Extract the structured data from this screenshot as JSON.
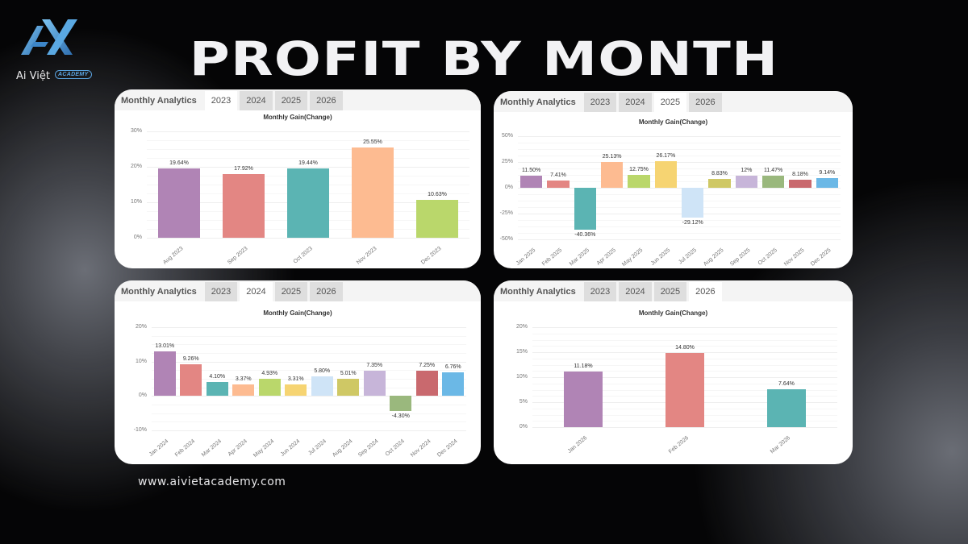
{
  "header": {
    "title": "PROFIT BY MONTH",
    "logo_text": "Ai Việt",
    "logo_badge": "ACADEMY",
    "logo_icon": "ax-logo-icon"
  },
  "footer": {
    "url": "www.aivietacademy.com"
  },
  "tabs_common": {
    "title": "Monthly Analytics",
    "years": [
      "2023",
      "2024",
      "2025",
      "2026"
    ]
  },
  "colors": {
    "purple": "#b084b5",
    "salmon": "#e38683",
    "teal": "#5bb4b3",
    "peach": "#fdbb91",
    "lime": "#bad76b",
    "yellow": "#f6d472",
    "sky": "#cfe4f7",
    "olive": "#cfc865",
    "lavender": "#c7b5d9",
    "sage": "#9ab87d",
    "rose": "#c9696e",
    "blue": "#6bb8e6"
  },
  "chart_data": [
    {
      "type": "bar",
      "panel": "top-left",
      "active_tab": "2023",
      "title": "Monthly Gain(Change)",
      "xlabel": "",
      "ylabel": "",
      "ylim": [
        0,
        30
      ],
      "yticks": [
        "30%",
        "20%",
        "10%",
        "0%"
      ],
      "ytick_values": [
        30,
        20,
        10,
        0
      ],
      "grid": true,
      "categories": [
        "Aug 2023",
        "Sep 2023",
        "Oct 2023",
        "Nov 2023",
        "Dec 2023"
      ],
      "values": [
        19.64,
        17.92,
        19.44,
        25.55,
        10.63
      ],
      "labels": [
        "19.64%",
        "17.92%",
        "19.44%",
        "25.55%",
        "10.63%"
      ],
      "colors": [
        "#b084b5",
        "#e38683",
        "#5bb4b3",
        "#fdbb91",
        "#bad76b"
      ]
    },
    {
      "type": "bar",
      "panel": "top-right",
      "active_tab": "2025",
      "title": "Monthly Gain(Change)",
      "xlabel": "",
      "ylabel": "",
      "ylim": [
        -50,
        50
      ],
      "yticks": [
        "50%",
        "25%",
        "0%",
        "-25%",
        "-50%"
      ],
      "ytick_values": [
        50,
        25,
        0,
        -25,
        -50
      ],
      "grid": true,
      "categories": [
        "Jan 2025",
        "Feb 2025",
        "Mar 2025",
        "Apr 2025",
        "May 2025",
        "Jun 2025",
        "Jul 2025",
        "Aug 2025",
        "Sep 2025",
        "Oct 2025",
        "Nov 2025",
        "Dec 2025"
      ],
      "values": [
        11.5,
        7.41,
        -40.36,
        25.13,
        12.75,
        26.17,
        -29.12,
        8.83,
        12,
        11.47,
        8.18,
        9.14
      ],
      "labels": [
        "11.50%",
        "7.41%",
        "-40.36%",
        "25.13%",
        "12.75%",
        "26.17%",
        "-29.12%",
        "8.83%",
        "12%",
        "11.47%",
        "8.18%",
        "9.14%"
      ],
      "colors": [
        "#b084b5",
        "#e38683",
        "#5bb4b3",
        "#fdbb91",
        "#bad76b",
        "#f6d472",
        "#cfe4f7",
        "#cfc865",
        "#c7b5d9",
        "#9ab87d",
        "#c9696e",
        "#6bb8e6"
      ]
    },
    {
      "type": "bar",
      "panel": "bottom-left",
      "active_tab": "2024",
      "title": "Monthly Gain(Change)",
      "xlabel": "",
      "ylabel": "",
      "ylim": [
        -10,
        20
      ],
      "yticks": [
        "20%",
        "10%",
        "0%",
        "-10%"
      ],
      "ytick_values": [
        20,
        10,
        0,
        -10
      ],
      "grid": true,
      "categories": [
        "Jan 2024",
        "Feb 2024",
        "Mar 2024",
        "Apr 2024",
        "May 2024",
        "Jun 2024",
        "Jul 2024",
        "Aug 2024",
        "Sep 2024",
        "Oct 2024",
        "Nov 2024",
        "Dec 2024"
      ],
      "values": [
        13.01,
        9.26,
        4.1,
        3.37,
        4.93,
        3.31,
        5.8,
        5.01,
        7.35,
        -4.3,
        7.25,
        6.76
      ],
      "labels": [
        "13.01%",
        "9.26%",
        "4.10%",
        "3.37%",
        "4.93%",
        "3.31%",
        "5.80%",
        "5.01%",
        "7.35%",
        "-4.30%",
        "7.25%",
        "6.76%"
      ],
      "colors": [
        "#b084b5",
        "#e38683",
        "#5bb4b3",
        "#fdbb91",
        "#bad76b",
        "#f6d472",
        "#cfe4f7",
        "#cfc865",
        "#c7b5d9",
        "#9ab87d",
        "#c9696e",
        "#6bb8e6"
      ]
    },
    {
      "type": "bar",
      "panel": "bottom-right",
      "active_tab": "2026",
      "title": "Monthly Gain(Change)",
      "xlabel": "",
      "ylabel": "",
      "ylim": [
        0,
        20
      ],
      "yticks": [
        "20%",
        "15%",
        "10%",
        "5%",
        "0%"
      ],
      "ytick_values": [
        20,
        15,
        10,
        5,
        0
      ],
      "grid": true,
      "categories": [
        "Jan 2026",
        "Feb 2026",
        "Mar 2026"
      ],
      "values": [
        11.18,
        14.8,
        7.64
      ],
      "labels": [
        "11.18%",
        "14.80%",
        "7.64%"
      ],
      "colors": [
        "#b084b5",
        "#e38683",
        "#5bb4b3"
      ]
    }
  ]
}
